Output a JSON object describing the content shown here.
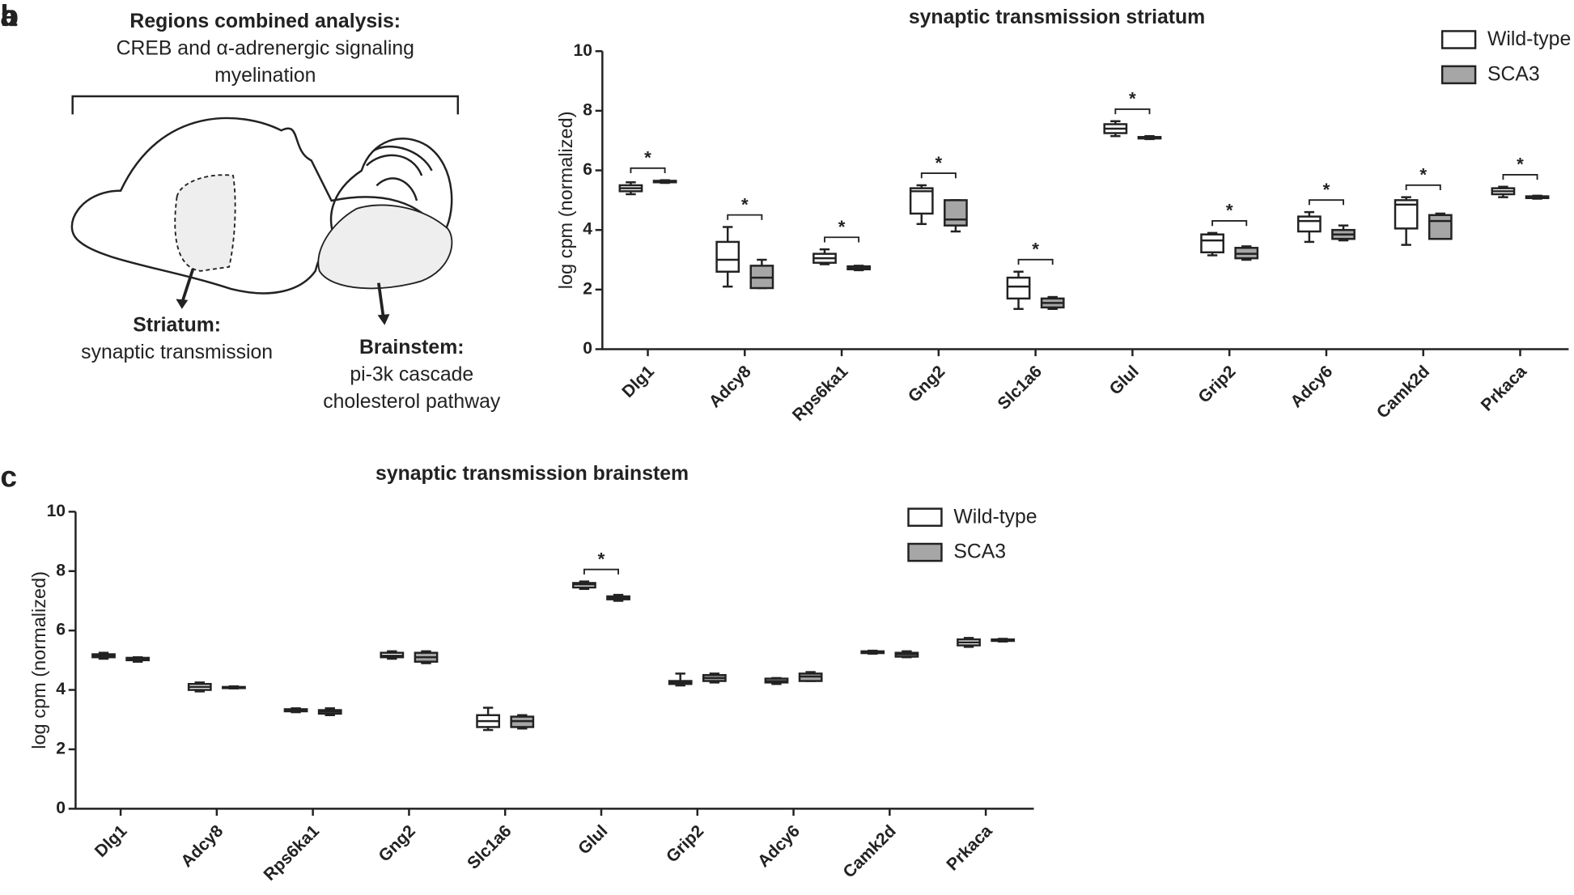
{
  "diagram": {
    "panel_label": "a",
    "heading": "Regions combined analysis:",
    "heading_lines": [
      "CREB and α-adrenergic signaling",
      "myelination"
    ],
    "striatum": {
      "label": "Striatum:",
      "text": "synaptic transmission"
    },
    "brainstem": {
      "label": "Brainstem:",
      "lines": [
        "pi-3k cascade",
        "cholesterol pathway"
      ]
    }
  },
  "chart_data": [
    {
      "type": "boxplot",
      "panel_label": "b",
      "title": "synaptic transmission striatum",
      "y_label": "log cpm (normalized)",
      "categories": [
        "Dlg1",
        "Adcy8",
        "Rps6ka1",
        "Gng2",
        "Slc1a6",
        "Glul",
        "Grip2",
        "Adcy6",
        "Camk2d",
        "Prkaca"
      ],
      "ylim": [
        0,
        10
      ],
      "yticks": [
        0,
        2,
        4,
        6,
        8,
        10
      ],
      "series": [
        {
          "name": "Wild-type",
          "color": "#ffffff",
          "min": [
            5.2,
            2.1,
            2.85,
            4.2,
            1.35,
            7.15,
            3.15,
            3.6,
            3.5,
            5.1
          ],
          "q1": [
            5.3,
            2.6,
            2.9,
            4.55,
            1.7,
            7.25,
            3.25,
            3.95,
            4.05,
            5.2
          ],
          "median": [
            5.4,
            3.0,
            3.05,
            5.3,
            2.1,
            7.4,
            3.65,
            4.3,
            4.85,
            5.3
          ],
          "q3": [
            5.5,
            3.6,
            3.2,
            5.4,
            2.4,
            7.55,
            3.85,
            4.45,
            5.0,
            5.4
          ],
          "max": [
            5.6,
            4.1,
            3.35,
            5.5,
            2.6,
            7.65,
            3.9,
            4.6,
            5.1,
            5.45
          ]
        },
        {
          "name": "SCA3",
          "color": "#a6a6a6",
          "min": [
            5.58,
            2.05,
            2.65,
            3.95,
            1.35,
            7.05,
            3.0,
            3.65,
            3.7,
            5.05
          ],
          "q1": [
            5.6,
            2.05,
            2.68,
            4.15,
            1.4,
            7.07,
            3.05,
            3.7,
            3.7,
            5.07
          ],
          "median": [
            5.62,
            2.4,
            2.72,
            4.35,
            1.55,
            7.1,
            3.2,
            3.85,
            4.3,
            5.1
          ],
          "q3": [
            5.65,
            2.8,
            2.78,
            5.0,
            1.7,
            7.12,
            3.4,
            4.0,
            4.5,
            5.13
          ],
          "max": [
            5.67,
            3.0,
            2.8,
            5.0,
            1.75,
            7.15,
            3.45,
            4.15,
            4.55,
            5.15
          ]
        }
      ],
      "significance": [
        "*",
        "*",
        "*",
        "*",
        "*",
        "*",
        "*",
        "*",
        "*",
        "*"
      ],
      "legend": "top-right"
    },
    {
      "type": "boxplot",
      "panel_label": "c",
      "title": "synaptic transmission brainstem",
      "y_label": "log cpm (normalized)",
      "categories": [
        "Dlg1",
        "Adcy8",
        "Rps6ka1",
        "Gng2",
        "Slc1a6",
        "Glul",
        "Grip2",
        "Adcy6",
        "Camk2d",
        "Prkaca"
      ],
      "ylim": [
        0,
        10
      ],
      "yticks": [
        0,
        2,
        4,
        6,
        8,
        10
      ],
      "series": [
        {
          "name": "Wild-type",
          "color": "#ffffff",
          "min": [
            5.05,
            3.95,
            3.25,
            5.05,
            2.65,
            7.4,
            4.15,
            4.2,
            5.22,
            5.45
          ],
          "q1": [
            5.1,
            4.0,
            3.28,
            5.1,
            2.75,
            7.45,
            4.2,
            4.25,
            5.24,
            5.5
          ],
          "median": [
            5.15,
            4.1,
            3.3,
            5.15,
            2.95,
            7.55,
            4.25,
            4.3,
            5.27,
            5.6
          ],
          "q3": [
            5.2,
            4.2,
            3.35,
            5.25,
            3.15,
            7.6,
            4.3,
            4.38,
            5.3,
            5.7
          ],
          "max": [
            5.25,
            4.25,
            3.38,
            5.3,
            3.4,
            7.65,
            4.55,
            4.4,
            5.32,
            5.75
          ]
        },
        {
          "name": "SCA3",
          "color": "#a6a6a6",
          "min": [
            4.95,
            4.05,
            3.15,
            4.9,
            2.7,
            7.0,
            4.25,
            4.3,
            5.1,
            5.63
          ],
          "q1": [
            5.0,
            4.06,
            3.2,
            4.95,
            2.75,
            7.05,
            4.3,
            4.3,
            5.12,
            5.65
          ],
          "median": [
            5.05,
            4.08,
            3.27,
            5.1,
            2.95,
            7.1,
            4.4,
            4.45,
            5.2,
            5.67
          ],
          "q3": [
            5.08,
            4.1,
            3.32,
            5.25,
            3.1,
            7.15,
            4.5,
            4.55,
            5.25,
            5.7
          ],
          "max": [
            5.1,
            4.12,
            3.38,
            5.3,
            3.15,
            7.2,
            4.55,
            4.6,
            5.3,
            5.72
          ]
        }
      ],
      "significance": [
        null,
        null,
        null,
        null,
        null,
        "*",
        null,
        null,
        null,
        null
      ],
      "legend": "top-right"
    }
  ]
}
